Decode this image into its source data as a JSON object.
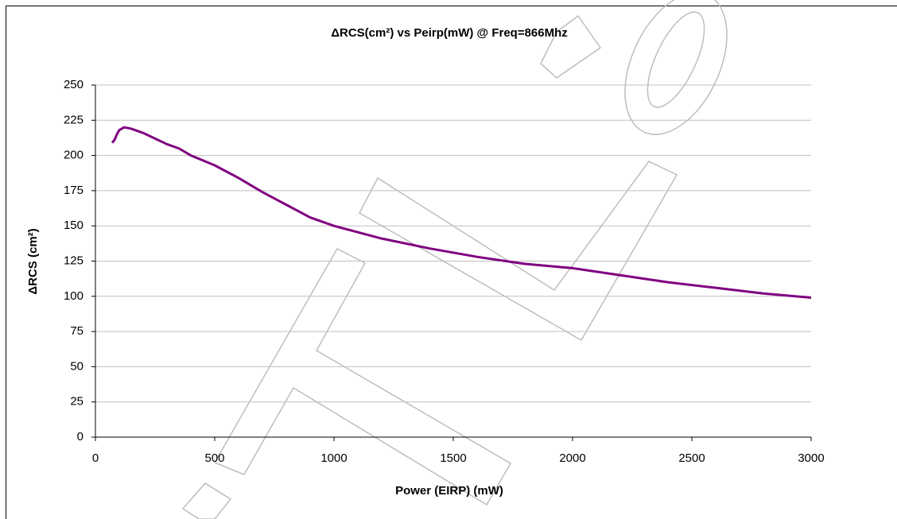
{
  "chart_data": {
    "type": "line",
    "title": "ΔRCS(cm²) vs Peirp(mW) @ Freq=866Mhz",
    "x_label": "Power (EIRP) (mW)",
    "y_label": "ΔRCS (cm²)",
    "x": [
      70,
      80,
      90,
      100,
      120,
      150,
      200,
      250,
      300,
      350,
      400,
      500,
      600,
      700,
      800,
      900,
      1000,
      1200,
      1400,
      1600,
      1800,
      2000,
      2200,
      2400,
      2600,
      2800,
      3000
    ],
    "values": [
      209,
      211,
      215,
      218,
      220,
      219,
      216,
      212,
      208,
      205,
      200,
      193,
      184,
      174,
      165,
      156,
      150,
      141,
      134,
      128,
      123,
      120,
      115,
      110,
      106,
      102,
      99
    ],
    "color": "#800080",
    "xlim": [
      0,
      3000
    ],
    "xticks": [
      0,
      500,
      1000,
      1500,
      2000,
      2500,
      3000
    ],
    "ylim": [
      0,
      250
    ],
    "yticks": [
      0,
      25,
      50,
      75,
      100,
      125,
      150,
      175,
      200,
      225,
      250
    ],
    "grid": true
  }
}
